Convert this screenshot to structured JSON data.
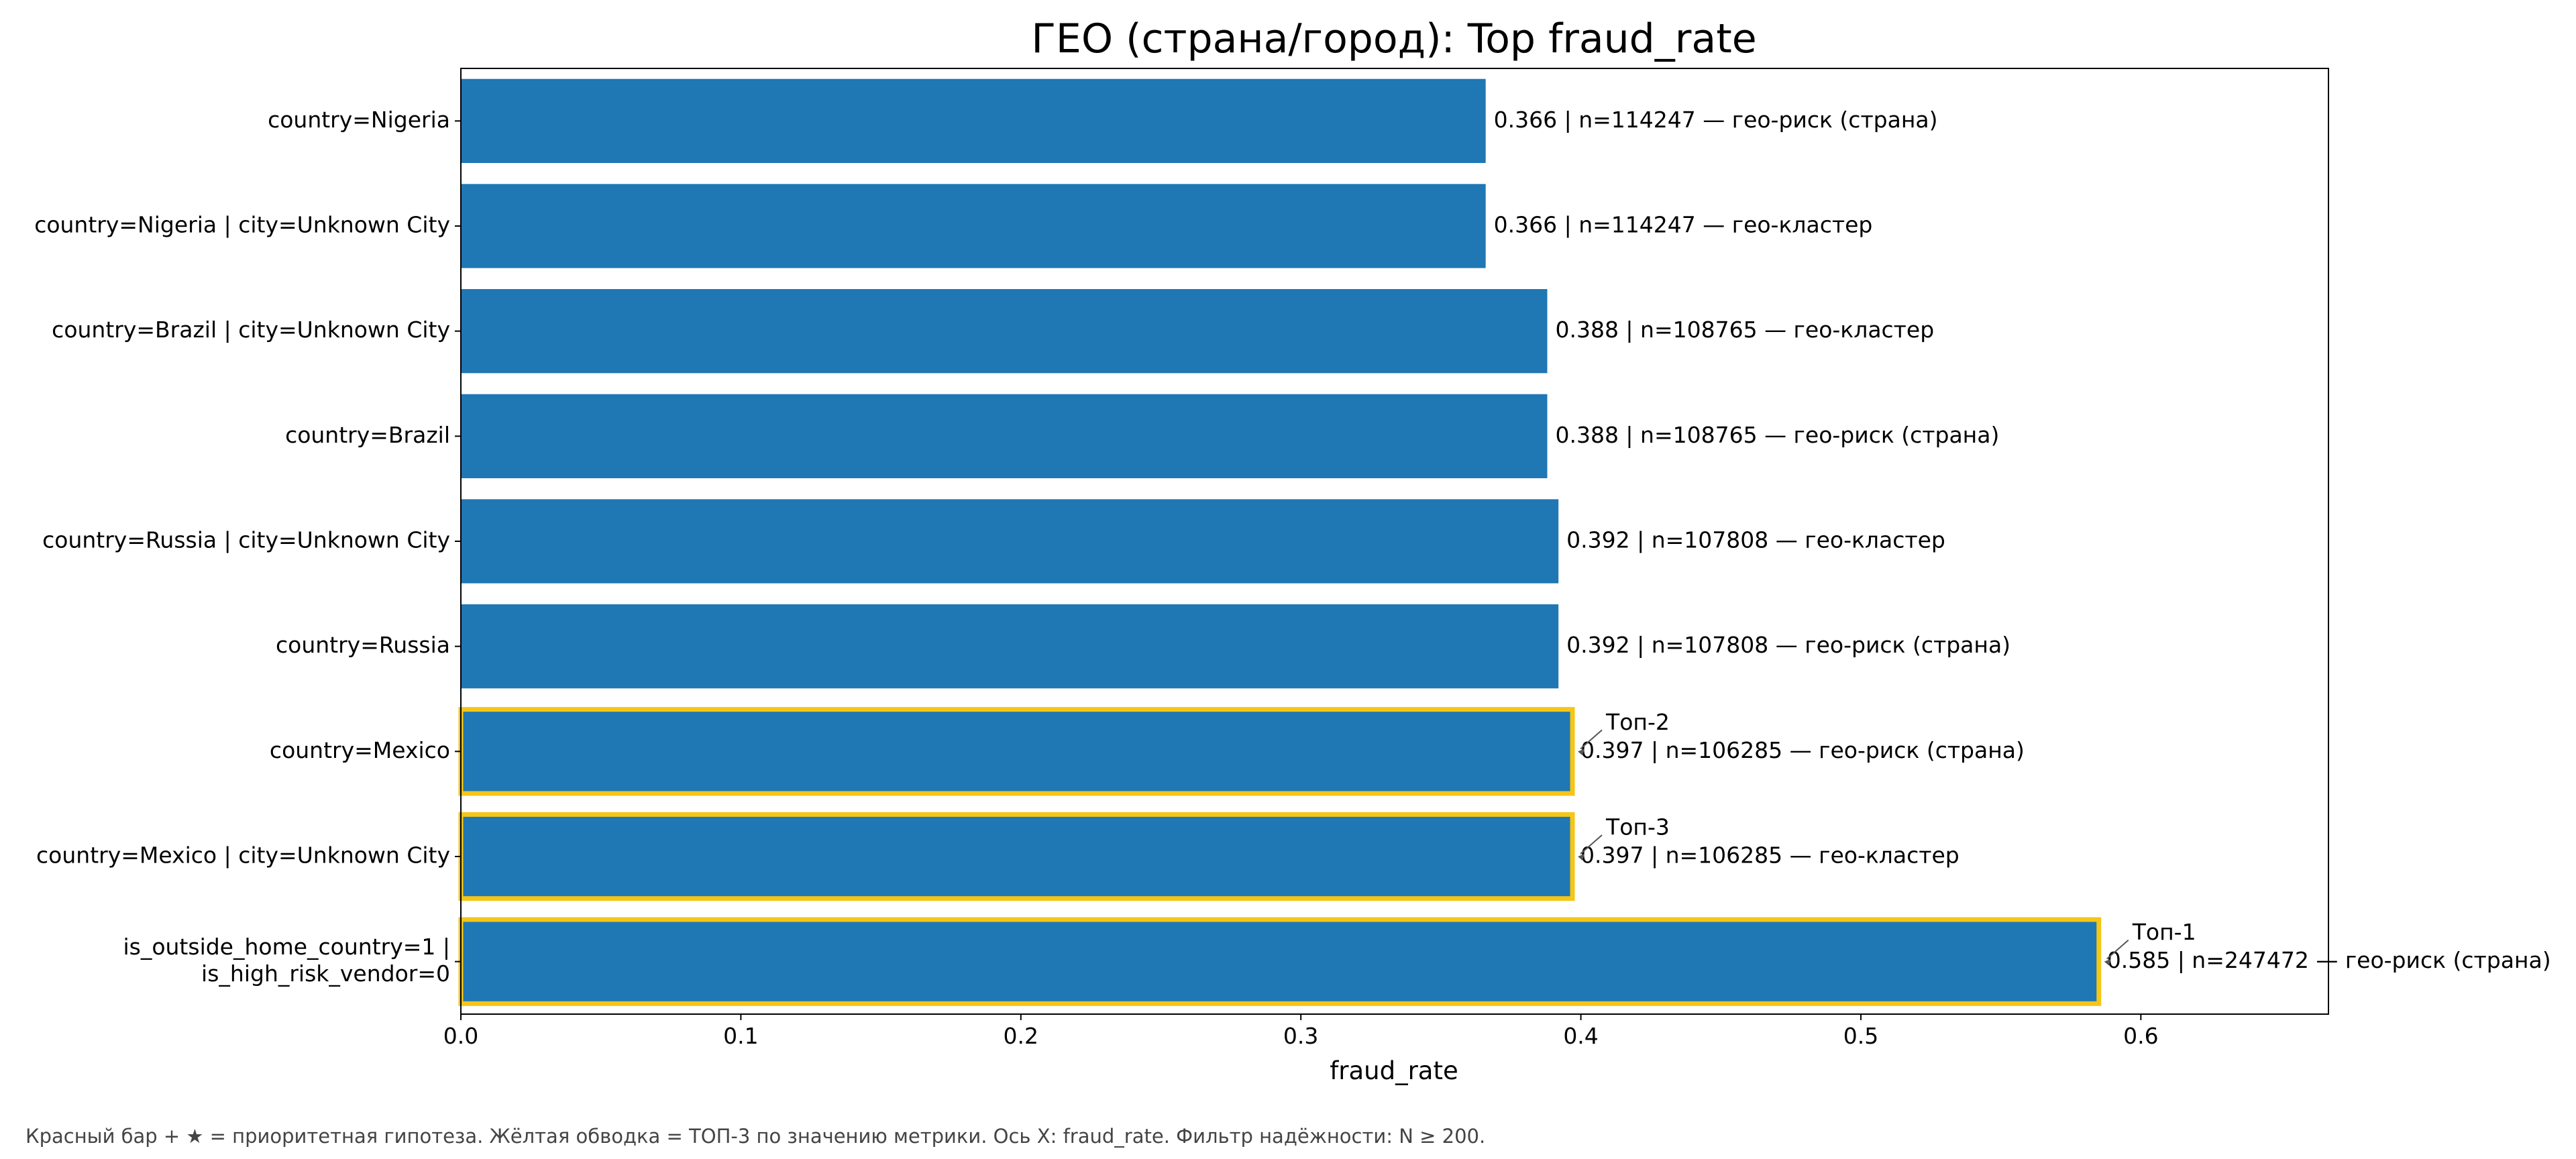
{
  "chart_data": {
    "type": "bar",
    "orientation": "horizontal",
    "title": "ГЕО (страна/город): Top fraud_rate",
    "xlabel": "fraud_rate",
    "ylabel": "",
    "xlim": [
      0,
      0.667
    ],
    "xticks": [
      "0.0",
      "0.1",
      "0.2",
      "0.3",
      "0.4",
      "0.5",
      "0.6"
    ],
    "grid": false,
    "bar_color": "#1f77b4",
    "highlight_color": "#f5c518",
    "bars": [
      {
        "category": [
          "country=Nigeria"
        ],
        "value": 0.366,
        "label": "0.366 | n=114247  —  гео-риск (страна)",
        "highlight": false
      },
      {
        "category": [
          "country=Nigeria | city=Unknown City"
        ],
        "value": 0.366,
        "label": "0.366 | n=114247  —  гео-кластер",
        "highlight": false
      },
      {
        "category": [
          "country=Brazil | city=Unknown City"
        ],
        "value": 0.388,
        "label": "0.388 | n=108765  —  гео-кластер",
        "highlight": false
      },
      {
        "category": [
          "country=Brazil"
        ],
        "value": 0.388,
        "label": "0.388 | n=108765  —  гео-риск (страна)",
        "highlight": false
      },
      {
        "category": [
          "country=Russia | city=Unknown City"
        ],
        "value": 0.392,
        "label": "0.392 | n=107808  —  гео-кластер",
        "highlight": false
      },
      {
        "category": [
          "country=Russia"
        ],
        "value": 0.392,
        "label": "0.392 | n=107808  —  гео-риск (страна)",
        "highlight": false
      },
      {
        "category": [
          "country=Mexico"
        ],
        "value": 0.397,
        "label": "0.397 | n=106285  —  гео-риск (страна)",
        "highlight": true,
        "annotation": "Топ-2"
      },
      {
        "category": [
          "country=Mexico | city=Unknown City"
        ],
        "value": 0.397,
        "label": "0.397 | n=106285  —  гео-кластер",
        "highlight": true,
        "annotation": "Топ-3"
      },
      {
        "category": [
          "is_outside_home_country=1 |",
          "is_high_risk_vendor=0"
        ],
        "value": 0.585,
        "label": "0.585 | n=247472  —  гео-риск (страна)",
        "highlight": true,
        "annotation": "Топ-1"
      }
    ]
  },
  "caption": "Красный бар + ★ = приоритетная гипотеза.  Жёлтая обводка = ТОП-3 по значению метрики.  Ось X: fraud_rate.  Фильтр надёжности: N ≥ 200."
}
